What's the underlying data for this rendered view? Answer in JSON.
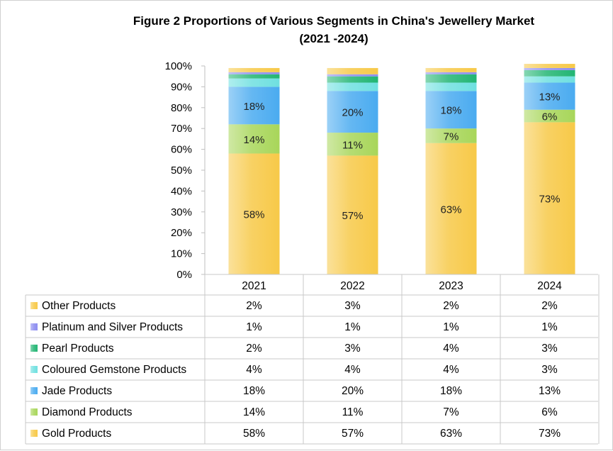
{
  "chart_data": {
    "type": "bar",
    "stacked": true,
    "title_line1": "Figure 2 Proportions of Various Segments in China's Jewellery Market",
    "title_line2": "(2021 -2024)",
    "categories": [
      "2021",
      "2022",
      "2023",
      "2024"
    ],
    "ylim": [
      0,
      100
    ],
    "y_ticks": [
      "0%",
      "10%",
      "20%",
      "30%",
      "40%",
      "50%",
      "60%",
      "70%",
      "80%",
      "90%",
      "100%"
    ],
    "grid": false,
    "legend": "data-table",
    "series": [
      {
        "name": "Gold Products",
        "values": [
          58,
          57,
          63,
          73
        ],
        "labels": [
          "58%",
          "57%",
          "63%",
          "73%"
        ],
        "color": "#f7c948",
        "show_labels": true
      },
      {
        "name": "Diamond Products",
        "values": [
          14,
          11,
          7,
          6
        ],
        "labels": [
          "14%",
          "11%",
          "7%",
          "6%"
        ],
        "color": "#a8d65a",
        "show_labels": true
      },
      {
        "name": "Jade Products",
        "values": [
          18,
          20,
          18,
          13
        ],
        "labels": [
          "18%",
          "20%",
          "18%",
          "13%"
        ],
        "color": "#4aabf0",
        "show_labels": true
      },
      {
        "name": "Coloured Gemstone Products",
        "values": [
          4,
          4,
          4,
          3
        ],
        "labels": [
          "4%",
          "4%",
          "4%",
          "3%"
        ],
        "color": "#6fe0e0",
        "show_labels": false
      },
      {
        "name": "Pearl Products",
        "values": [
          2,
          3,
          4,
          3
        ],
        "labels": [
          "2%",
          "3%",
          "4%",
          "3%"
        ],
        "color": "#22b573",
        "show_labels": false
      },
      {
        "name": "Platinum and Silver Products",
        "values": [
          1,
          1,
          1,
          1
        ],
        "labels": [
          "1%",
          "1%",
          "1%",
          "1%"
        ],
        "color": "#8c8cf0",
        "show_labels": false
      },
      {
        "name": "Other Products",
        "values": [
          2,
          3,
          2,
          2
        ],
        "labels": [
          "2%",
          "3%",
          "2%",
          "2%"
        ],
        "color": "#f7c948",
        "show_labels": false
      }
    ],
    "table_row_order": [
      "Other Products",
      "Platinum and Silver Products",
      "Pearl Products",
      "Coloured Gemstone Products",
      "Jade Products",
      "Diamond Products",
      "Gold Products"
    ]
  }
}
